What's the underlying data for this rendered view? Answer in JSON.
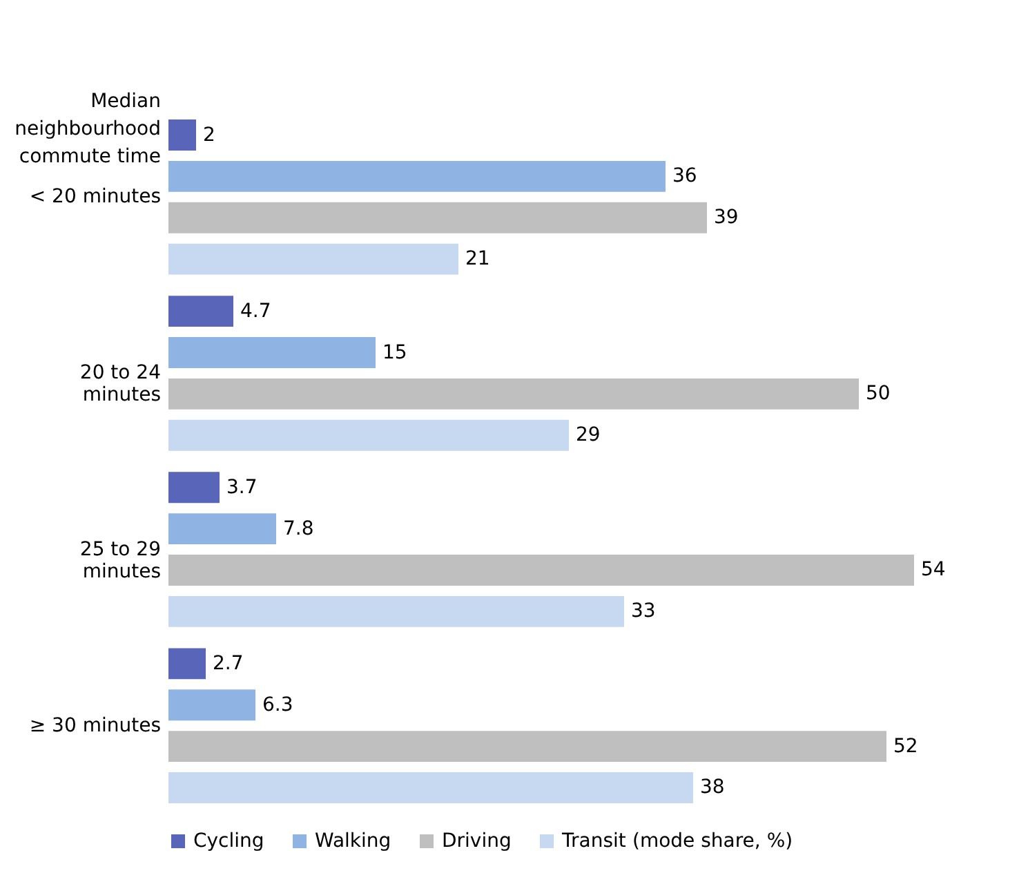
{
  "chart_data": {
    "type": "bar",
    "orientation": "horizontal",
    "ylabel": "Median neighbourhood commute time",
    "legend_title": "(mode share, %)",
    "categories": [
      "< 20 minutes",
      "20 to 24 minutes",
      "25 to 29 minutes",
      "≥ 30 minutes"
    ],
    "series": [
      {
        "name": "Cycling",
        "color": "#5865b8",
        "values": [
          2,
          4.7,
          3.7,
          2.7
        ]
      },
      {
        "name": "Walking",
        "color": "#8fb4e3",
        "values": [
          36,
          15,
          7.8,
          6.3
        ]
      },
      {
        "name": "Driving",
        "color": "#bfbfbf",
        "values": [
          39,
          50,
          54,
          52
        ]
      },
      {
        "name": "Transit",
        "color": "#c6d9f1",
        "values": [
          21,
          29,
          33,
          38
        ]
      }
    ],
    "data_labels": true,
    "legend": "bottom",
    "tick_labels": "y"
  }
}
